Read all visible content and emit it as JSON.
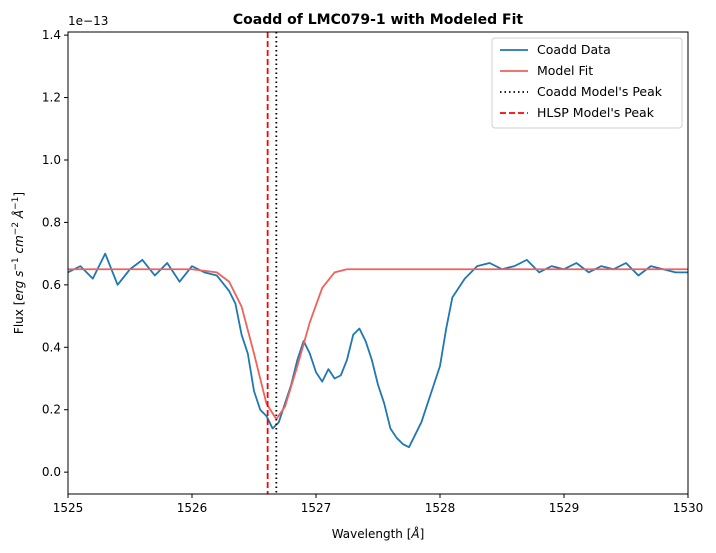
{
  "chart_data": {
    "type": "line",
    "title": "Coadd of LMC079-1 with Modeled Fit",
    "xlabel_parts": [
      "Wavelength [",
      "Å",
      "]"
    ],
    "ylabel_parts": [
      "Flux [",
      "erg s",
      "−1",
      " cm",
      "−2",
      " Å",
      "−1",
      "]"
    ],
    "y_offset_label": "1e−13",
    "xlim": [
      1525,
      1530
    ],
    "ylim": [
      -0.07,
      1.41
    ],
    "x_ticks": [
      1525,
      1526,
      1527,
      1528,
      1529,
      1530
    ],
    "x_tick_labels": [
      "1525",
      "1526",
      "1527",
      "1528",
      "1529",
      "1530"
    ],
    "y_ticks": [
      0.0,
      0.2,
      0.4,
      0.6,
      0.8,
      1.0,
      1.2,
      1.4
    ],
    "y_tick_labels": [
      "0.0",
      "0.2",
      "0.4",
      "0.6",
      "0.8",
      "1.0",
      "1.2",
      "1.4"
    ],
    "grid": false,
    "legend_position": "top-right",
    "series": [
      {
        "name": "Coadd Data",
        "color": "#1f77b4",
        "style": "solid",
        "x": [
          1525.0,
          1525.1,
          1525.2,
          1525.3,
          1525.4,
          1525.5,
          1525.6,
          1525.7,
          1525.8,
          1525.9,
          1526.0,
          1526.1,
          1526.2,
          1526.3,
          1526.35,
          1526.4,
          1526.45,
          1526.5,
          1526.55,
          1526.6,
          1526.65,
          1526.7,
          1526.75,
          1526.8,
          1526.85,
          1526.9,
          1526.95,
          1527.0,
          1527.05,
          1527.1,
          1527.15,
          1527.2,
          1527.25,
          1527.3,
          1527.35,
          1527.4,
          1527.45,
          1527.5,
          1527.55,
          1527.6,
          1527.65,
          1527.7,
          1527.75,
          1527.8,
          1527.85,
          1527.9,
          1527.95,
          1528.0,
          1528.05,
          1528.1,
          1528.2,
          1528.3,
          1528.4,
          1528.5,
          1528.6,
          1528.7,
          1528.8,
          1528.9,
          1529.0,
          1529.1,
          1529.2,
          1529.3,
          1529.4,
          1529.5,
          1529.6,
          1529.7,
          1529.8,
          1529.9,
          1530.0
        ],
        "y": [
          0.64,
          0.66,
          0.62,
          0.7,
          0.6,
          0.65,
          0.68,
          0.63,
          0.67,
          0.61,
          0.66,
          0.64,
          0.63,
          0.58,
          0.54,
          0.44,
          0.38,
          0.26,
          0.2,
          0.18,
          0.14,
          0.16,
          0.22,
          0.28,
          0.36,
          0.42,
          0.38,
          0.32,
          0.29,
          0.33,
          0.3,
          0.31,
          0.36,
          0.44,
          0.46,
          0.42,
          0.36,
          0.28,
          0.22,
          0.14,
          0.11,
          0.09,
          0.08,
          0.12,
          0.16,
          0.22,
          0.28,
          0.34,
          0.46,
          0.56,
          0.62,
          0.66,
          0.67,
          0.65,
          0.66,
          0.68,
          0.64,
          0.66,
          0.65,
          0.67,
          0.64,
          0.66,
          0.65,
          0.67,
          0.63,
          0.66,
          0.65,
          0.64,
          0.64
        ]
      },
      {
        "name": "Model Fit",
        "color": "#f0615b",
        "style": "solid",
        "x": [
          1525.0,
          1525.5,
          1526.0,
          1526.2,
          1526.3,
          1526.4,
          1526.5,
          1526.6,
          1526.68,
          1526.75,
          1526.85,
          1526.95,
          1527.05,
          1527.15,
          1527.25,
          1527.4,
          1528.0,
          1529.0,
          1530.0
        ],
        "y": [
          0.65,
          0.65,
          0.65,
          0.64,
          0.61,
          0.53,
          0.38,
          0.22,
          0.17,
          0.21,
          0.34,
          0.48,
          0.59,
          0.64,
          0.65,
          0.65,
          0.65,
          0.65,
          0.65
        ]
      },
      {
        "name": "Coadd Model's Peak",
        "color": "#000000",
        "style": "dotted",
        "vline_x": 1526.68
      },
      {
        "name": "HLSP Model's Peak",
        "color": "#ff0000",
        "style": "dashed",
        "vline_x": 1526.61
      }
    ]
  }
}
